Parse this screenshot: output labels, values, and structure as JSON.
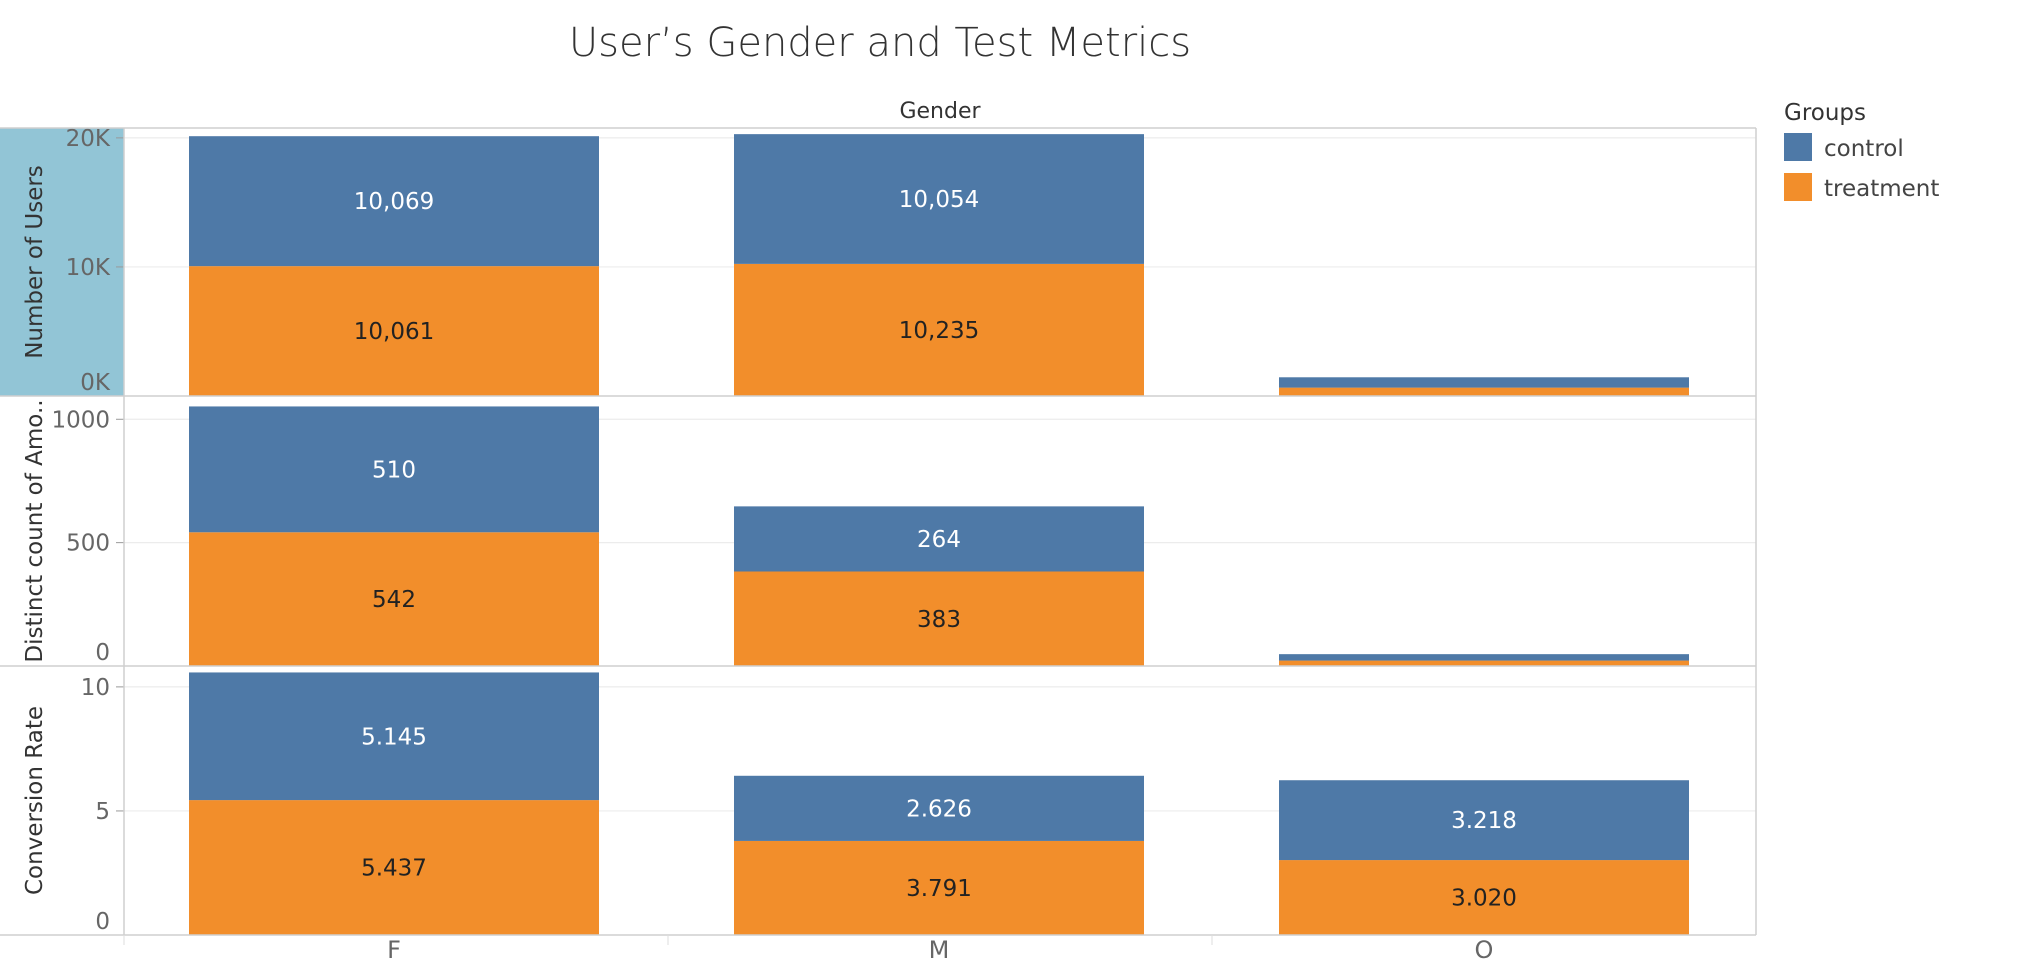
{
  "chart_data": {
    "type": "bar",
    "stacked": true,
    "title": "User’s Gender and Test Metrics",
    "column_header": "Gender",
    "categories": [
      "F",
      "M",
      "O"
    ],
    "colors": {
      "control": "#4e79a7",
      "treatment": "#f28e2b",
      "row_header_bg": "#92c5d6"
    },
    "legend": {
      "title": "Groups",
      "position": "top-right",
      "entries": [
        {
          "name": "control",
          "color": "#4e79a7"
        },
        {
          "name": "treatment",
          "color": "#f28e2b"
        }
      ]
    },
    "grid": true,
    "panels": [
      {
        "ylabel": "Number of Users",
        "ylim": [
          0,
          20300
        ],
        "ticks": [
          {
            "value": 0,
            "label": "0K"
          },
          {
            "value": 10000,
            "label": "10K"
          },
          {
            "value": 20000,
            "label": "20K"
          }
        ],
        "series": [
          {
            "name": "treatment",
            "values": [
              10061,
              10235,
              650
            ],
            "labels": [
              "10,061",
              "10,235",
              ""
            ]
          },
          {
            "name": "control",
            "values": [
              10069,
              10054,
              800
            ],
            "labels": [
              "10,069",
              "10,054",
              ""
            ]
          }
        ]
      },
      {
        "ylabel": "Distinct count of Amo..",
        "ylim": [
          0,
          1070
        ],
        "ticks": [
          {
            "value": 0,
            "label": "0"
          },
          {
            "value": 500,
            "label": "500"
          },
          {
            "value": 1000,
            "label": "1000"
          }
        ],
        "series": [
          {
            "name": "treatment",
            "values": [
              542,
              383,
              22
            ],
            "labels": [
              "542",
              "383",
              ""
            ]
          },
          {
            "name": "control",
            "values": [
              510,
              264,
              26
            ],
            "labels": [
              "510",
              "264",
              ""
            ]
          }
        ]
      },
      {
        "ylabel": "Conversion Rate",
        "ylim": [
          0,
          10.6
        ],
        "ticks": [
          {
            "value": 0,
            "label": "0"
          },
          {
            "value": 5,
            "label": "5"
          },
          {
            "value": 10,
            "label": "10"
          }
        ],
        "series": [
          {
            "name": "treatment",
            "values": [
              5.437,
              3.791,
              3.02
            ],
            "labels": [
              "5.437",
              "3.791",
              "3.020"
            ]
          },
          {
            "name": "control",
            "values": [
              5.145,
              2.626,
              3.218
            ],
            "labels": [
              "5.145",
              "2.626",
              "3.218"
            ]
          }
        ]
      }
    ]
  }
}
